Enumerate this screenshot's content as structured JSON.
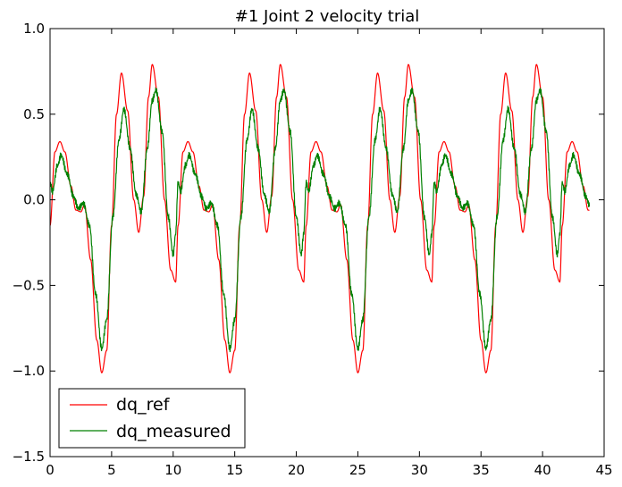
{
  "chart_data": {
    "type": "line",
    "title": "#1 Joint 2 velocity trial",
    "xlabel": "",
    "ylabel": "",
    "xlim": [
      0,
      45
    ],
    "ylim": [
      -1.5,
      1.0
    ],
    "xticks": [
      0,
      5,
      10,
      15,
      20,
      25,
      30,
      35,
      40,
      45
    ],
    "xtick_labels": [
      "0",
      "5",
      "10",
      "15",
      "20",
      "25",
      "30",
      "35",
      "40",
      "45"
    ],
    "yticks": [
      -1.5,
      -1.0,
      -0.5,
      0.0,
      0.5,
      1.0
    ],
    "ytick_labels": [
      "−1.5",
      "−1.0",
      "−0.5",
      "0.0",
      "0.5",
      "1.0"
    ],
    "grid": false,
    "legend_position": "lower-left",
    "period": 10.4,
    "series": [
      {
        "name": "dq_ref",
        "color": "#ff0000",
        "x_range": [
          0,
          43.8
        ],
        "cycle": [
          [
            0.0,
            -0.15
          ],
          [
            0.4,
            0.28
          ],
          [
            0.8,
            0.34
          ],
          [
            1.2,
            0.28
          ],
          [
            1.7,
            0.08
          ],
          [
            2.1,
            -0.06
          ],
          [
            2.5,
            -0.07
          ],
          [
            2.8,
            -0.03
          ],
          [
            3.3,
            -0.35
          ],
          [
            3.8,
            -0.82
          ],
          [
            4.2,
            -1.01
          ],
          [
            4.6,
            -0.88
          ],
          [
            5.0,
            -0.15
          ],
          [
            5.4,
            0.5
          ],
          [
            5.8,
            0.74
          ],
          [
            6.3,
            0.52
          ],
          [
            6.8,
            0.0
          ],
          [
            7.2,
            -0.19
          ],
          [
            7.6,
            0.02
          ],
          [
            8.0,
            0.6
          ],
          [
            8.3,
            0.79
          ],
          [
            8.8,
            0.6
          ],
          [
            9.3,
            0.0
          ],
          [
            9.8,
            -0.41
          ],
          [
            10.2,
            -0.48
          ],
          [
            10.4,
            -0.15
          ]
        ]
      },
      {
        "name": "dq_measured",
        "color": "#008000",
        "x_range": [
          0,
          43.8
        ],
        "cycle": [
          [
            0.0,
            0.1
          ],
          [
            0.2,
            0.05
          ],
          [
            0.6,
            0.2
          ],
          [
            0.9,
            0.26
          ],
          [
            1.4,
            0.15
          ],
          [
            1.9,
            0.02
          ],
          [
            2.3,
            -0.05
          ],
          [
            2.7,
            -0.02
          ],
          [
            3.2,
            -0.15
          ],
          [
            3.7,
            -0.55
          ],
          [
            4.2,
            -0.87
          ],
          [
            4.6,
            -0.7
          ],
          [
            5.1,
            -0.1
          ],
          [
            5.6,
            0.35
          ],
          [
            6.0,
            0.53
          ],
          [
            6.5,
            0.3
          ],
          [
            7.0,
            0.03
          ],
          [
            7.4,
            -0.07
          ],
          [
            7.9,
            0.3
          ],
          [
            8.3,
            0.58
          ],
          [
            8.6,
            0.64
          ],
          [
            9.1,
            0.4
          ],
          [
            9.6,
            -0.1
          ],
          [
            10.0,
            -0.32
          ],
          [
            10.2,
            -0.2
          ],
          [
            10.4,
            0.1
          ]
        ]
      }
    ]
  }
}
